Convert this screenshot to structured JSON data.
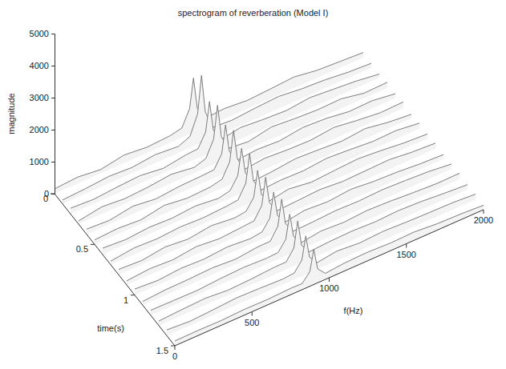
{
  "chart_data": {
    "type": "surface",
    "title": "spectrogram of reverberation (Model I)",
    "xlabel": "f(Hz)",
    "ylabel": "time(s)",
    "zlabel": "magnitude",
    "xlim": [
      0,
      2000
    ],
    "xticks": [
      0,
      500,
      1000,
      1500,
      2000
    ],
    "ylim": [
      0,
      1.5
    ],
    "yticks": [
      0,
      0.5,
      1,
      1.5
    ],
    "zlim": [
      0,
      5000
    ],
    "zticks": [
      0,
      1000,
      2000,
      3000,
      4000,
      5000
    ],
    "x": [
      0,
      150,
      300,
      450,
      600,
      750,
      825,
      875,
      900,
      925,
      975,
      1100,
      1250,
      1400,
      1550,
      1700,
      1850,
      2000
    ],
    "y": [
      0,
      0.1,
      0.2,
      0.3,
      0.4,
      0.5,
      0.6,
      0.7,
      0.8,
      0.9,
      1.0,
      1.1,
      1.2,
      1.3,
      1.4,
      1.5
    ],
    "z": [
      [
        150,
        200,
        120,
        250,
        180,
        220,
        300,
        800,
        1700,
        700,
        280,
        320,
        260,
        300,
        350,
        240,
        200,
        160
      ],
      [
        120,
        160,
        220,
        180,
        260,
        200,
        350,
        950,
        2100,
        900,
        320,
        280,
        340,
        380,
        300,
        260,
        180,
        140
      ],
      [
        180,
        140,
        200,
        240,
        150,
        260,
        280,
        700,
        1600,
        650,
        250,
        360,
        300,
        260,
        340,
        280,
        220,
        120
      ],
      [
        100,
        220,
        160,
        200,
        280,
        180,
        300,
        800,
        1800,
        760,
        300,
        240,
        380,
        320,
        280,
        300,
        160,
        180
      ],
      [
        160,
        120,
        240,
        150,
        220,
        240,
        260,
        650,
        1500,
        620,
        240,
        300,
        260,
        360,
        320,
        220,
        240,
        140
      ],
      [
        140,
        180,
        130,
        260,
        170,
        200,
        280,
        720,
        1650,
        700,
        280,
        350,
        300,
        280,
        360,
        260,
        180,
        200
      ],
      [
        200,
        150,
        210,
        180,
        240,
        160,
        240,
        600,
        1400,
        580,
        220,
        260,
        340,
        300,
        250,
        320,
        200,
        130
      ],
      [
        110,
        200,
        170,
        220,
        190,
        230,
        270,
        680,
        1550,
        650,
        260,
        300,
        280,
        350,
        300,
        240,
        260,
        170
      ],
      [
        170,
        130,
        230,
        160,
        260,
        180,
        230,
        560,
        1350,
        540,
        230,
        340,
        240,
        290,
        330,
        270,
        190,
        150
      ],
      [
        130,
        190,
        150,
        240,
        170,
        220,
        250,
        620,
        1450,
        600,
        250,
        280,
        320,
        260,
        280,
        300,
        220,
        180
      ],
      [
        190,
        140,
        200,
        170,
        230,
        170,
        220,
        540,
        1300,
        520,
        210,
        310,
        260,
        330,
        260,
        230,
        170,
        140
      ],
      [
        120,
        170,
        180,
        210,
        160,
        240,
        240,
        600,
        1400,
        580,
        240,
        260,
        300,
        280,
        310,
        280,
        240,
        160
      ],
      [
        160,
        150,
        140,
        190,
        220,
        190,
        210,
        520,
        1250,
        500,
        200,
        290,
        250,
        300,
        270,
        220,
        180,
        190
      ],
      [
        140,
        180,
        210,
        150,
        180,
        230,
        230,
        560,
        1350,
        540,
        230,
        270,
        290,
        260,
        290,
        260,
        200,
        150
      ],
      [
        180,
        130,
        170,
        220,
        200,
        170,
        200,
        500,
        1200,
        480,
        210,
        300,
        240,
        280,
        250,
        230,
        220,
        170
      ],
      [
        150,
        160,
        150,
        180,
        170,
        200,
        190,
        460,
        1100,
        440,
        190,
        250,
        270,
        240,
        260,
        200,
        180,
        140
      ]
    ]
  }
}
